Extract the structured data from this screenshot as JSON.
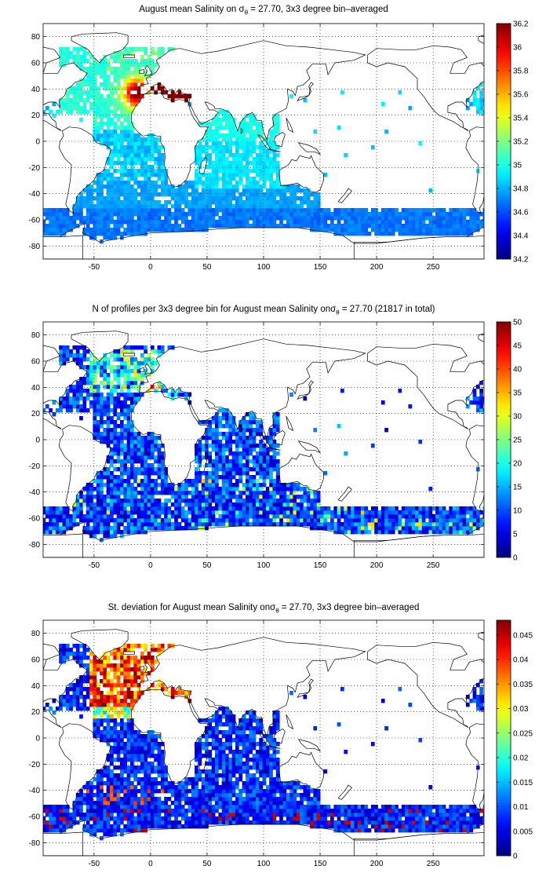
{
  "colors": {
    "colormap": "jet",
    "coastline": "#000000",
    "grid": "#000000",
    "background": "#ffffff"
  },
  "chart_data": [
    {
      "type": "heatmap",
      "title_prefix": "August mean Salinity on ",
      "sigma_symbol": "σ",
      "sigma_subscript": "θ",
      "title_suffix": " = 27.70, 3x3 degree bin–averaged",
      "xlim": [
        -95,
        295
      ],
      "ylim": [
        -90,
        90
      ],
      "xticks": [
        "-50",
        "0",
        "50",
        "100",
        "150",
        "200",
        "250"
      ],
      "yticks": [
        "80",
        "60",
        "40",
        "20",
        "0",
        "-20",
        "-40",
        "-60",
        "-80"
      ],
      "colorbar_range": [
        34.2,
        36.2
      ],
      "colorbar_ticks": [
        "36.2",
        "36",
        "35.8",
        "35.6",
        "35.4",
        "35.2",
        "35",
        "34.8",
        "34.6",
        "34.4",
        "34.2"
      ],
      "field": "salinity",
      "grid_on": true
    },
    {
      "type": "heatmap",
      "title_prefix": "N of profiles per 3x3 degree bin for August mean Salinity on",
      "sigma_symbol": "σ",
      "sigma_subscript": "θ",
      "title_suffix": " = 27.70 (21817 in total)",
      "xlim": [
        -95,
        295
      ],
      "ylim": [
        -90,
        90
      ],
      "xticks": [
        "-50",
        "0",
        "50",
        "100",
        "150",
        "200",
        "250"
      ],
      "yticks": [
        "80",
        "60",
        "40",
        "20",
        "0",
        "-20",
        "-40",
        "-60",
        "-80"
      ],
      "colorbar_range": [
        0,
        50
      ],
      "colorbar_ticks": [
        "50",
        "45",
        "40",
        "35",
        "30",
        "25",
        "20",
        "15",
        "10",
        "5",
        "0"
      ],
      "field": "count",
      "grid_on": true
    },
    {
      "type": "heatmap",
      "title_prefix": "St. deviation for August mean Salinity on",
      "sigma_symbol": "σ",
      "sigma_subscript": "θ",
      "title_suffix": " = 27.70, 3x3 degree bin–averaged",
      "xlim": [
        -95,
        295
      ],
      "ylim": [
        -90,
        90
      ],
      "xticks": [
        "-50",
        "0",
        "50",
        "100",
        "150",
        "200",
        "250"
      ],
      "yticks": [
        "80",
        "60",
        "40",
        "20",
        "0",
        "-20",
        "-40",
        "-60",
        "-80"
      ],
      "colorbar_range": [
        0,
        0.048
      ],
      "colorbar_ticks": [
        "0.045",
        "0.04",
        "0.035",
        "0.03",
        "0.025",
        "0.02",
        "0.015",
        "0.01",
        "0.005",
        "0"
      ],
      "colorbar_tick_values": [
        0.045,
        0.04,
        0.035,
        0.03,
        0.025,
        0.02,
        0.015,
        0.01,
        0.005,
        0
      ],
      "field": "stdev",
      "grid_on": true
    }
  ]
}
